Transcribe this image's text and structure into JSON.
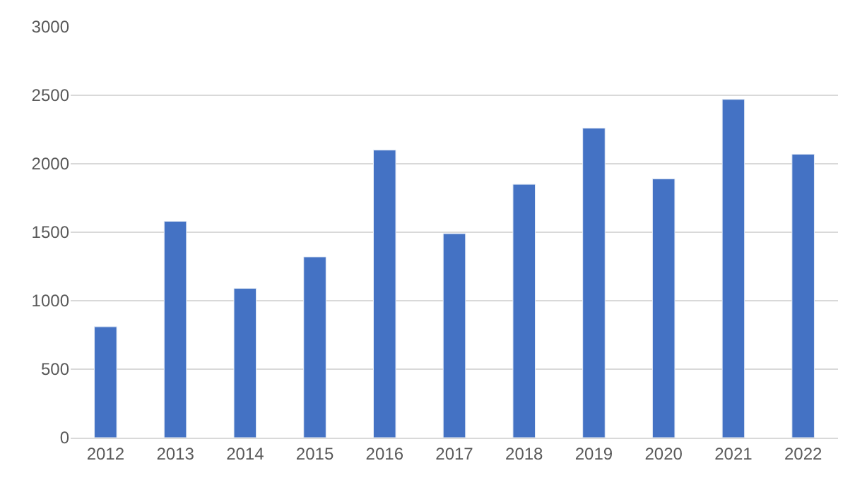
{
  "chart_data": {
    "type": "bar",
    "categories": [
      "2012",
      "2013",
      "2014",
      "2015",
      "2016",
      "2017",
      "2018",
      "2019",
      "2020",
      "2021",
      "2022"
    ],
    "values": [
      810,
      1580,
      1090,
      1320,
      2100,
      1490,
      1850,
      2260,
      1890,
      2470,
      2070
    ],
    "color": "#4472c4",
    "ylim": [
      0,
      3000
    ],
    "yticks": [
      0,
      500,
      1000,
      1500,
      2000,
      2500,
      3000
    ],
    "grid": "y",
    "legend": false
  }
}
